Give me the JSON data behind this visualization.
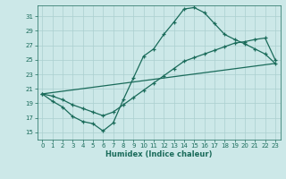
{
  "title": "",
  "xlabel": "Humidex (Indice chaleur)",
  "bg_color": "#cce8e8",
  "line_color": "#1a6b5a",
  "grid_color": "#aacfcf",
  "xlim": [
    -0.5,
    23.5
  ],
  "ylim": [
    14.0,
    32.5
  ],
  "yticks": [
    15,
    17,
    19,
    21,
    23,
    25,
    27,
    29,
    31
  ],
  "xticks": [
    0,
    1,
    2,
    3,
    4,
    5,
    6,
    7,
    8,
    9,
    10,
    11,
    12,
    13,
    14,
    15,
    16,
    17,
    18,
    19,
    20,
    21,
    22,
    23
  ],
  "line1_x": [
    0,
    1,
    2,
    3,
    4,
    5,
    6,
    7,
    8,
    9,
    10,
    11,
    12,
    13,
    14,
    15,
    16,
    17,
    18,
    19,
    20,
    21,
    22,
    23
  ],
  "line1_y": [
    20.3,
    19.3,
    18.5,
    17.2,
    16.5,
    16.2,
    15.2,
    16.3,
    19.5,
    22.5,
    25.5,
    26.5,
    28.5,
    30.2,
    32.0,
    32.2,
    31.5,
    30.0,
    28.5,
    27.8,
    27.2,
    26.5,
    25.8,
    24.5
  ],
  "line2_x": [
    0,
    1,
    2,
    3,
    4,
    5,
    6,
    7,
    8,
    9,
    10,
    11,
    12,
    13,
    14,
    15,
    16,
    17,
    18,
    19,
    20,
    21,
    22,
    23
  ],
  "line2_y": [
    20.3,
    20.0,
    19.5,
    18.8,
    18.3,
    17.8,
    17.3,
    17.8,
    18.8,
    19.8,
    20.8,
    21.8,
    22.8,
    23.8,
    24.8,
    25.3,
    25.8,
    26.3,
    26.8,
    27.3,
    27.5,
    27.8,
    28.0,
    25.0
  ],
  "line3_x": [
    0,
    23
  ],
  "line3_y": [
    20.3,
    24.5
  ]
}
